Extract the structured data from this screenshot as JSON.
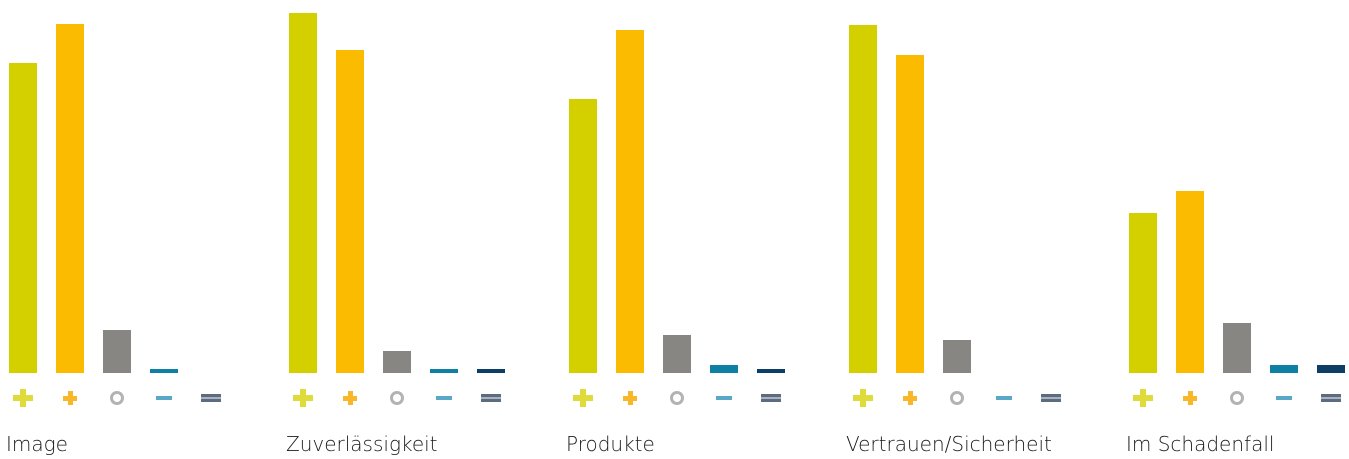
{
  "chart_data": {
    "type": "bar",
    "categories": [
      "Image",
      "Zuverlässigkeit",
      "Produkte",
      "Vertrauen/Sicherheit",
      "Im Schadenfall"
    ],
    "series": [
      {
        "symbol": "plus",
        "color": "#d4d000",
        "values": [
          310,
          360,
          274,
          348,
          160
        ]
      },
      {
        "symbol": "small-plus",
        "color": "#fbbb00",
        "values": [
          349,
          323,
          343,
          318,
          182
        ]
      },
      {
        "symbol": "circle",
        "color": "#878683",
        "values": [
          43,
          22,
          38,
          33,
          50
        ]
      },
      {
        "symbol": "minus",
        "color": "#0e80a4",
        "values": [
          4,
          4,
          8,
          0,
          8
        ]
      },
      {
        "symbol": "double-minus",
        "color": "#0c3e66",
        "values": [
          0,
          4,
          4,
          0,
          8
        ]
      }
    ],
    "ylim": [
      0,
      362
    ],
    "grid": false
  }
}
